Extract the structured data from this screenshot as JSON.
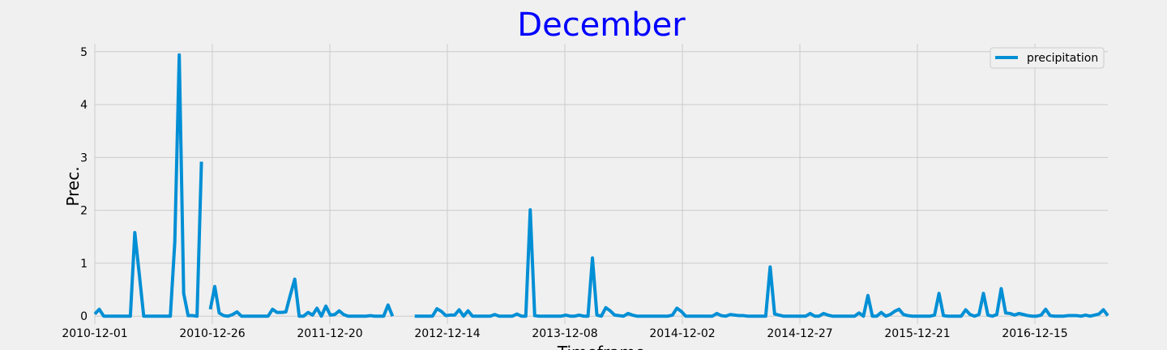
{
  "chart_data": {
    "type": "line",
    "title": "December",
    "title_color": "#0000ff",
    "xlabel": "Timeframe",
    "ylabel": "Prec.",
    "ylim": [
      -0.15,
      5.15
    ],
    "yticks": [
      0,
      1,
      2,
      3,
      4,
      5
    ],
    "xticks": [
      "2010-12-01",
      "2010-12-26",
      "2011-12-20",
      "2012-12-14",
      "2013-12-08",
      "2014-12-02",
      "2014-12-27",
      "2015-12-21",
      "2016-12-15"
    ],
    "grid": true,
    "legend_position": "top-right",
    "line_color": "#008fd5",
    "background_color": "#f0f0f0",
    "grid_color": "#cbcbcb",
    "series": [
      {
        "name": "precipitation",
        "values": [
          0.04,
          0.13,
          0.0,
          0.0,
          0.0,
          0.0,
          0.0,
          0.0,
          0.0,
          1.58,
          0.8,
          0.0,
          0.0,
          0.0,
          0.0,
          0.0,
          0.0,
          0.0,
          1.4,
          4.94,
          0.43,
          0.01,
          0.01,
          0.0,
          2.92,
          null,
          0.13,
          0.56,
          0.06,
          0.01,
          0.0,
          0.03,
          0.08,
          0.0,
          0.0,
          0.0,
          0.0,
          0.0,
          0.0,
          0.0,
          0.13,
          0.07,
          0.07,
          0.08,
          0.4,
          0.7,
          0.0,
          0.0,
          0.07,
          0.02,
          0.15,
          0.0,
          0.19,
          0.02,
          0.03,
          0.1,
          0.03,
          0.0,
          0.0,
          0.0,
          0.0,
          0.0,
          0.01,
          0.0,
          0.0,
          0.0,
          0.21,
          0.0,
          null,
          null,
          null,
          null,
          0.0,
          0.0,
          0.0,
          0.0,
          0.0,
          0.14,
          0.09,
          0.01,
          0.02,
          0.02,
          0.12,
          0.0,
          0.1,
          0.0,
          0.0,
          0.0,
          0.0,
          0.0,
          0.03,
          0.0,
          0.0,
          0.0,
          0.0,
          0.04,
          0.0,
          0.0,
          2.01,
          0.01,
          0.0,
          0.0,
          0.0,
          0.0,
          0.0,
          0.0,
          0.02,
          0.0,
          0.0,
          0.02,
          0.0,
          0.0,
          1.1,
          0.02,
          0.0,
          0.16,
          0.1,
          0.02,
          0.01,
          0.0,
          0.05,
          0.02,
          0.0,
          0.0,
          0.0,
          0.0,
          0.0,
          0.0,
          0.0,
          0.0,
          0.02,
          0.15,
          0.09,
          0.0,
          0.0,
          0.0,
          0.0,
          0.0,
          0.0,
          0.0,
          0.05,
          0.01,
          0.0,
          0.03,
          0.02,
          0.01,
          0.01,
          0.0,
          0.0,
          0.0,
          0.0,
          0.0,
          0.93,
          0.04,
          0.02,
          0.0,
          0.0,
          0.0,
          0.0,
          0.0,
          0.0,
          0.05,
          0.0,
          0.0,
          0.05,
          0.02,
          0.0,
          0.0,
          0.0,
          0.0,
          0.0,
          0.0,
          0.06,
          0.0,
          0.39,
          0.0,
          0.0,
          0.07,
          0.0,
          0.03,
          0.09,
          0.13,
          0.03,
          0.01,
          0.0,
          0.0,
          0.0,
          0.0,
          0.0,
          0.02,
          0.43,
          0.01,
          0.0,
          0.0,
          0.0,
          0.0,
          0.12,
          0.03,
          0.0,
          0.03,
          0.43,
          0.02,
          0.0,
          0.03,
          0.52,
          0.06,
          0.05,
          0.02,
          0.05,
          0.03,
          0.01,
          0.0,
          0.0,
          0.02,
          0.13,
          0.01,
          0.0,
          0.0,
          0.0,
          0.01,
          0.01,
          0.01,
          0.0,
          0.02,
          0.0,
          0.02,
          0.04,
          0.12,
          0.01
        ]
      }
    ]
  }
}
